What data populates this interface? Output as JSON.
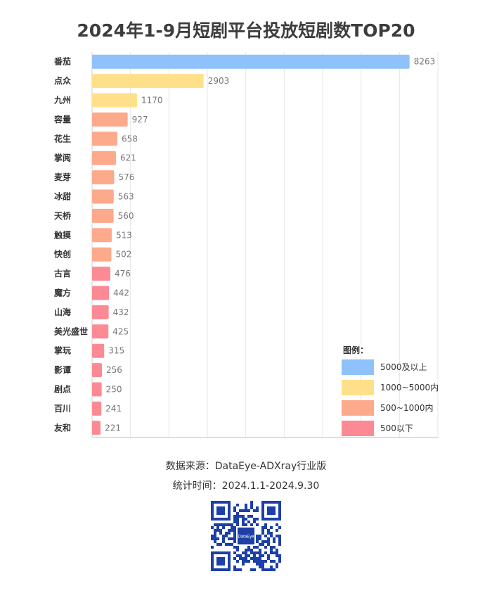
{
  "chart_data": {
    "type": "bar",
    "orientation": "horizontal",
    "title": "2024年1-9月短剧平台投放短剧数TOP20",
    "categories": [
      "番茄",
      "点众",
      "九州",
      "容量",
      "花生",
      "掌阅",
      "麦芽",
      "冰甜",
      "天桥",
      "触摸",
      "快创",
      "古言",
      "魔方",
      "山海",
      "美光盛世",
      "掌玩",
      "影谭",
      "剧点",
      "百川",
      "友和"
    ],
    "values": [
      8263,
      2903,
      1170,
      927,
      658,
      621,
      576,
      563,
      560,
      513,
      502,
      476,
      442,
      432,
      425,
      315,
      256,
      250,
      241,
      221
    ],
    "xlim": [
      0,
      9000
    ],
    "grid": true,
    "legend_position": "bottom-right",
    "legend": {
      "title": "图例：",
      "items": [
        {
          "label": "5000及以上",
          "color": "#8fc1fb",
          "min": 5000,
          "max": null
        },
        {
          "label": "1000~5000内",
          "color": "#ffe08a",
          "min": 1000,
          "max": 5000
        },
        {
          "label": "500~1000内",
          "color": "#fda98c",
          "min": 500,
          "max": 1000
        },
        {
          "label": "500以下",
          "color": "#fc8a94",
          "min": null,
          "max": 500
        }
      ]
    }
  },
  "footer": {
    "source": "数据来源：DataEye-ADXray行业版",
    "period": "统计时间：2024.1.1-2024.9.30"
  },
  "qr": {
    "logo_text": "DataEye",
    "color": "#1c3fa8"
  }
}
